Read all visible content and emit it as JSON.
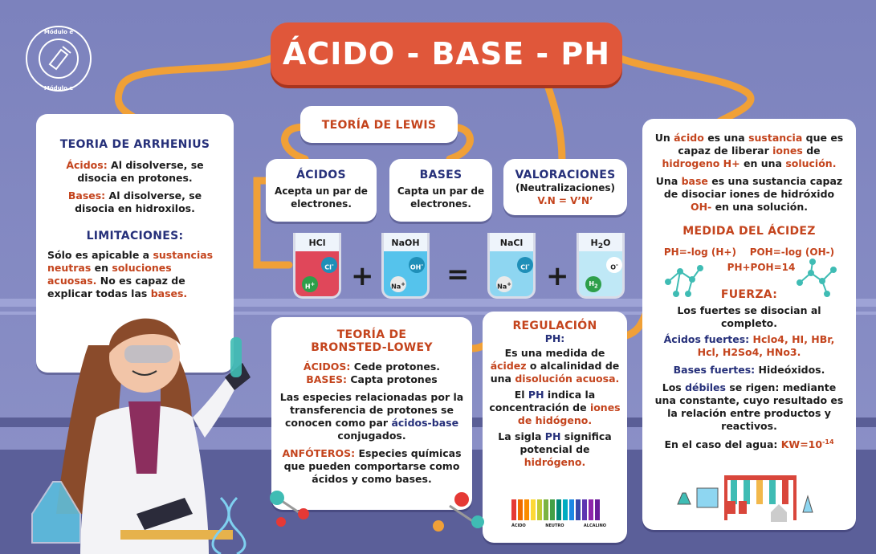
{
  "title": "ÁCIDO - BASE - PH",
  "logo": {
    "text": "Módulo e Módulo e Módulo e"
  },
  "arrhenius": {
    "heading": "TEORIA DE ARRHENIUS",
    "acids_label": "Ácidos:",
    "acids_text": "Al disolverse, se disocia en protones.",
    "bases_label": "Bases:",
    "bases_text": "Al disolverse, se disocia en hidroxilos.",
    "limits_heading": "LIMITACIONES:",
    "limits_text_1": "Sólo es apicable a",
    "limits_hl_1": "sustancias neutras",
    "limits_text_2": "en",
    "limits_hl_2": "soluciones acuosas.",
    "limits_text_3": "No es capaz de explicar todas las",
    "limits_hl_3": "bases."
  },
  "lewis": {
    "heading": "TEORÍA DE LEWIS",
    "acids_title": "ÁCIDOS",
    "acids_text": "Acepta un par de electrones.",
    "bases_title": "BASES",
    "bases_text": "Capta un par de electrones."
  },
  "valoraciones": {
    "title": "VALORACIONES",
    "subtitle": "(Neutralizaciones)",
    "formula": "V.N = V’N’"
  },
  "reaction": {
    "beakers": [
      {
        "label": "HCl",
        "ion1": "Cl",
        "ion1_sup": "-",
        "ion2": "H",
        "ion2_sup": "+"
      },
      {
        "label": "NaOH",
        "ion1": "OH",
        "ion1_sup": "-",
        "ion2": "Na",
        "ion2_sup": "+"
      },
      {
        "label": "NaCl",
        "ion1": "Cl",
        "ion1_sup": "-",
        "ion2": "Na",
        "ion2_sup": "+"
      },
      {
        "label": "H",
        "label_sub": "2",
        "label_tail": "O",
        "ion1": "O",
        "ion1_sup": "-",
        "ion2": "H",
        "ion2_sub": "2"
      }
    ],
    "plus": "+",
    "equals": "="
  },
  "definitions": {
    "t1": "Un",
    "h1": "ácido",
    "t2": "es una",
    "h2": "sustancia",
    "t3": "que es capaz de liberar",
    "h3": "iones",
    "t4": "de",
    "h4": "hidrogeno H+",
    "t5": "en una",
    "h5": "solución.",
    "t6": "Una",
    "h6": "base",
    "t7": "es una sustancia capaz de disociar iones de hidróxido",
    "h7": "OH-",
    "t8": "en una solución."
  },
  "medida": {
    "heading": "MEDIDA DEL ÁCIDEZ",
    "f1": "PH=-log (H+)",
    "f2": "POH=-log (OH-)",
    "f3": "PH+POH=14"
  },
  "fuerza": {
    "heading": "FUERZA:",
    "t1": "Los fuertes se disocian al completo.",
    "acids_label": "Ácidos fuertes:",
    "acids_list": "Hclo4, HI, HBr, Hcl, H2So4, HNo3.",
    "bases_label": "Bases fuertes:",
    "bases_text": "Hideóxidos.",
    "t2": "Los",
    "weak": "débiles",
    "t3": "se rigen: mediante una constante, cuyo resultado es la relación entre productos y reactivos.",
    "t4": "En el caso del agua:",
    "kw": "KW=10",
    "kw_exp": "-14"
  },
  "bronsted": {
    "heading_1": "TEORÍA DE",
    "heading_2": "BRONSTED-LOWEY",
    "acids_label": "ÁCIDOS:",
    "acids_text": "Cede protones.",
    "bases_label": "BASES:",
    "bases_text": "Capta protones",
    "t1": "Las especies relacionadas por la transferencia de protones se conocen como par",
    "hl": "ácidos-base",
    "t2": "conjugados.",
    "amph_label": "ANFÓTEROS:",
    "amph_text": "Especies químicas que pueden comportarse como ácidos y como bases."
  },
  "regulacion": {
    "heading": "REGULACIÓN",
    "sub": "PH:",
    "t1": "Es una medida de",
    "h1": "ácidez",
    "t2": "o alcalinidad de una",
    "h2": "disolución acuosa.",
    "t3": "El",
    "h3": "PH",
    "t4": "indica la concentración de",
    "h4": "iones de hidógeno.",
    "t5": "La sigla",
    "h5": "PH",
    "t6": "significa potencial de",
    "h6": "hidrógeno.",
    "scale_labels": [
      "ÁCIDO",
      "NEUTRO",
      "ALCALINO"
    ]
  },
  "colors": {
    "background": "#7d83bd",
    "title_bg": "#e0573a",
    "navy": "#26307a",
    "accent_red": "#c4441d",
    "connector": "#f0a037"
  }
}
